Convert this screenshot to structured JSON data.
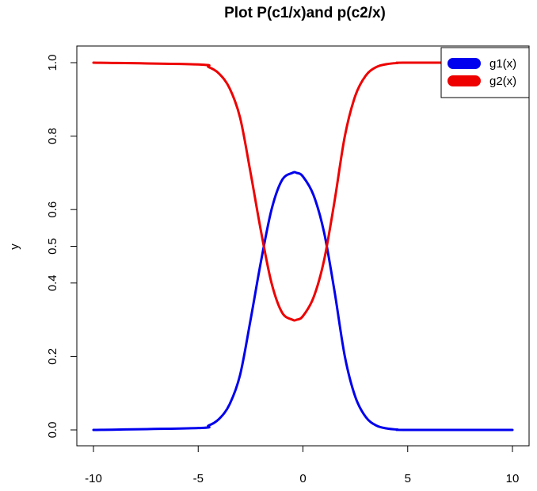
{
  "chart_data": {
    "type": "line",
    "title": "Plot P(c1/x)and p(c2/x)",
    "xlabel": "",
    "ylabel": "y",
    "xlim": [
      -10,
      10
    ],
    "ylim": [
      0,
      1
    ],
    "x_ticks": [
      -10,
      -5,
      0,
      5,
      10
    ],
    "x_tick_labels": [
      "-10",
      "-5",
      "0",
      "5",
      "10"
    ],
    "y_ticks": [
      0.0,
      0.2,
      0.4,
      0.5,
      0.6,
      0.8,
      1.0
    ],
    "y_tick_labels": [
      "0.0",
      "0.2",
      "0.4",
      "0.5",
      "0.6",
      "0.8",
      "1.0"
    ],
    "legend_position": "top-right",
    "grid": false,
    "series": [
      {
        "name": "g1(x)",
        "color": "#0000ee",
        "x": [
          -10,
          -5,
          -4.5,
          -4,
          -3.5,
          -3,
          -2.5,
          -2,
          -1.5,
          -1,
          -0.5,
          -0.3,
          0,
          0.5,
          1,
          1.5,
          2,
          2.5,
          3,
          3.5,
          4,
          4.5,
          5,
          10
        ],
        "y": [
          0.0,
          0.005,
          0.012,
          0.03,
          0.07,
          0.15,
          0.3,
          0.46,
          0.6,
          0.68,
          0.7,
          0.7,
          0.69,
          0.64,
          0.54,
          0.38,
          0.2,
          0.09,
          0.035,
          0.012,
          0.004,
          0.001,
          0.0,
          0.0
        ]
      },
      {
        "name": "g2(x)",
        "color": "#ee0000",
        "x": [
          -10,
          -5,
          -4.5,
          -4,
          -3.5,
          -3,
          -2.5,
          -2,
          -1.5,
          -1,
          -0.5,
          -0.3,
          0,
          0.5,
          1,
          1.5,
          2,
          2.5,
          3,
          3.5,
          4,
          4.5,
          5,
          10
        ],
        "y": [
          1.0,
          0.995,
          0.988,
          0.97,
          0.93,
          0.85,
          0.7,
          0.54,
          0.4,
          0.32,
          0.3,
          0.3,
          0.31,
          0.36,
          0.46,
          0.62,
          0.8,
          0.91,
          0.965,
          0.988,
          0.996,
          0.999,
          1.0,
          1.0
        ]
      }
    ]
  }
}
